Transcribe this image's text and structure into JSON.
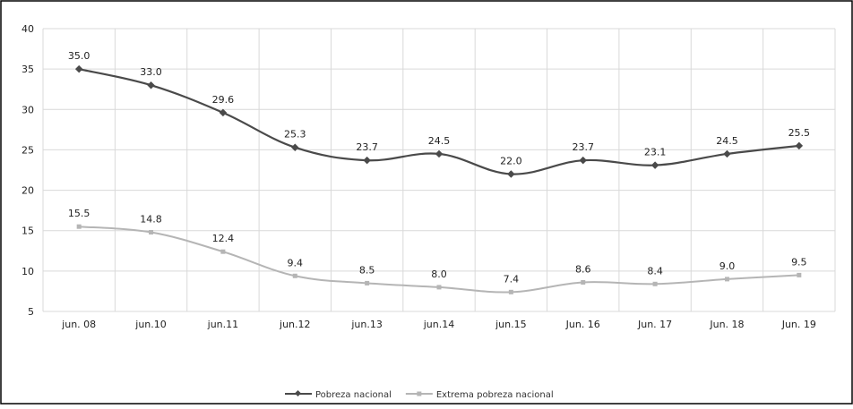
{
  "chart_data": {
    "type": "line",
    "categories": [
      "jun. 08",
      "jun.10",
      "jun.11",
      "jun.12",
      "jun.13",
      "jun.14",
      "jun.15",
      "Jun. 16",
      "Jun. 17",
      "Jun. 18",
      "Jun. 19"
    ],
    "series": [
      {
        "name": "Pobreza nacional",
        "values": [
          35.0,
          33.0,
          29.6,
          25.3,
          23.7,
          24.5,
          22.0,
          23.7,
          23.1,
          24.5,
          25.5
        ],
        "color": "#4a4a4a",
        "labels": [
          "35.0",
          "33.0",
          "29.6",
          "25.3",
          "23.7",
          "24.5",
          "22.0",
          "23.7",
          "23.1",
          "24.5",
          "25.5"
        ]
      },
      {
        "name": "Extrema pobreza nacional",
        "values": [
          15.5,
          14.8,
          12.4,
          9.4,
          8.5,
          8.0,
          7.4,
          8.6,
          8.4,
          9.0,
          9.5
        ],
        "color": "#b5b5b5",
        "labels": [
          "15.5",
          "14.8",
          "12.4",
          "9.4",
          "8.5",
          "8.0",
          "7.4",
          "8.6",
          "8.4",
          "9.0",
          "9.5"
        ]
      }
    ],
    "yticks": [
      "5",
      "10",
      "15",
      "20",
      "25",
      "30",
      "35",
      "40"
    ],
    "ylim": [
      5,
      40
    ],
    "grid": true,
    "legend": "bottom-center"
  }
}
